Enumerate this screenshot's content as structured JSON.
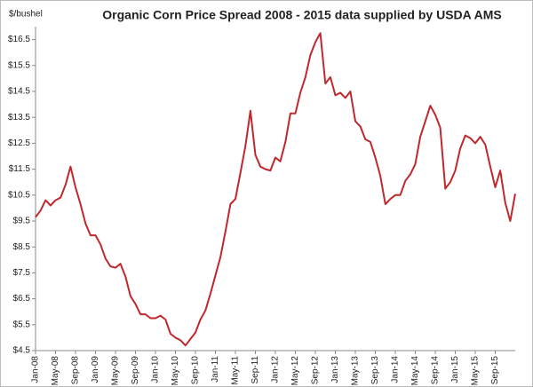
{
  "chart_data": {
    "type": "line",
    "title": "Organic Corn Price Spread 2008 - 2015 data supplied by USDA AMS",
    "y_label": "$/bushel",
    "categories": [
      "Jan-08",
      null,
      null,
      null,
      "May-08",
      null,
      null,
      null,
      "Sep-08",
      null,
      null,
      null,
      "Jan-09",
      null,
      null,
      null,
      "May-09",
      null,
      null,
      null,
      "Sep-09",
      null,
      null,
      null,
      "Jan-10",
      null,
      null,
      null,
      "May-10",
      null,
      null,
      null,
      "Sep-10",
      null,
      null,
      null,
      "Jan-11",
      null,
      null,
      null,
      "May-11",
      null,
      null,
      null,
      "Sep-11",
      null,
      null,
      null,
      "Jan-12",
      null,
      null,
      null,
      "May-12",
      null,
      null,
      null,
      "Sep-12",
      null,
      null,
      null,
      "Jan-13",
      null,
      null,
      null,
      "May-13",
      null,
      null,
      null,
      "Sep-13",
      null,
      null,
      null,
      "Jan-14",
      null,
      null,
      null,
      "May-14",
      null,
      null,
      null,
      "Sep-14",
      null,
      null,
      null,
      "Jan-15",
      null,
      null,
      null,
      "May-15",
      null,
      null,
      null,
      "Sep-15",
      null,
      null,
      null,
      null
    ],
    "series": [
      {
        "color": "#c0282d",
        "values": [
          9.65,
          9.9,
          10.3,
          10.1,
          10.3,
          10.4,
          10.9,
          11.6,
          10.8,
          10.15,
          9.4,
          8.95,
          8.95,
          8.6,
          8.05,
          7.75,
          7.7,
          7.85,
          7.35,
          6.6,
          6.3,
          5.9,
          5.9,
          5.75,
          5.75,
          5.85,
          5.7,
          5.15,
          5.0,
          4.9,
          4.7,
          4.95,
          5.2,
          5.7,
          6.05,
          6.7,
          7.4,
          8.1,
          9.1,
          10.15,
          10.35,
          11.35,
          12.4,
          13.75,
          12.05,
          11.6,
          11.5,
          11.45,
          11.95,
          11.8,
          12.55,
          13.65,
          13.65,
          14.45,
          15.05,
          15.9,
          16.4,
          16.75,
          14.8,
          15.05,
          14.35,
          14.45,
          14.25,
          14.5,
          13.35,
          13.15,
          12.65,
          12.55,
          11.95,
          11.25,
          10.15,
          10.35,
          10.5,
          10.5,
          11.05,
          11.3,
          11.7,
          12.75,
          13.35,
          13.95,
          13.6,
          13.1,
          10.75,
          11.0,
          11.45,
          12.3,
          12.8,
          12.7,
          12.5,
          12.75,
          12.45,
          11.6,
          10.8,
          11.45,
          10.2,
          9.5,
          10.55
        ]
      }
    ],
    "ylim": [
      4.5,
      17
    ],
    "yticks": [
      {
        "value": 4.5,
        "label": "$4.5"
      },
      {
        "value": 5.5,
        "label": "$5.5"
      },
      {
        "value": 6.5,
        "label": "$6.5"
      },
      {
        "value": 7.5,
        "label": "$7.5"
      },
      {
        "value": 8.5,
        "label": "$8.5"
      },
      {
        "value": 9.5,
        "label": "$9.5"
      },
      {
        "value": 10.5,
        "label": "$10.5"
      },
      {
        "value": 11.5,
        "label": "$11.5"
      },
      {
        "value": 12.5,
        "label": "$12.5"
      },
      {
        "value": 13.5,
        "label": "$13.5"
      },
      {
        "value": 14.5,
        "label": "$14.5"
      },
      {
        "value": 15.5,
        "label": "$15.5"
      },
      {
        "value": 16.5,
        "label": "$16.5"
      }
    ],
    "grid": false
  }
}
